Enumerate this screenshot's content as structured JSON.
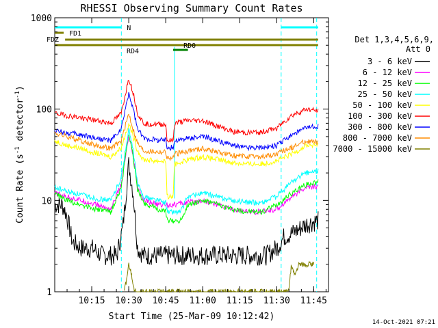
{
  "chart_data": {
    "type": "line",
    "title": "RHESSI Observing Summary Count Rates",
    "xlabel": "Start Time (25-Mar-09 10:12:42)",
    "ylabel_main": "Count Rate (s",
    "ylabel_sup1": "-1",
    "ylabel_mid": " detector",
    "ylabel_sup2": "-1",
    "ylabel_end": ")",
    "yscale": "log",
    "ylim": [
      1,
      1000
    ],
    "xlim_minutes": [
      10.0,
      11.85
    ],
    "x_ticks": [
      "10:15",
      "10:30",
      "10:45",
      "11:00",
      "11:15",
      "11:30",
      "11:45"
    ],
    "x_tick_values": [
      10.25,
      10.5,
      10.75,
      11.0,
      11.25,
      11.5,
      11.75
    ],
    "y_ticks": [
      "1",
      "10",
      "100",
      "1000"
    ],
    "y_tick_values": [
      1,
      10,
      100,
      1000
    ],
    "legend_header": [
      "Det 1,3,4,5,6,9,",
      "Att 0"
    ],
    "legend_placement": "right",
    "timestamp": "14-Oct-2021 07:21",
    "series": [
      {
        "name": "3 - 6 keV",
        "color": "#000000",
        "x": [
          10.0,
          10.05,
          10.08,
          10.12,
          10.18,
          10.25,
          10.32,
          10.38,
          10.42,
          10.46,
          10.5,
          10.53,
          10.56,
          10.6,
          10.65,
          10.75,
          10.85,
          11.0,
          11.15,
          11.3,
          11.43,
          11.5,
          11.55,
          11.62,
          11.7,
          11.78
        ],
        "y": [
          9,
          9,
          7,
          3.5,
          3,
          3,
          2.5,
          2.5,
          2.5,
          5,
          25,
          12,
          3,
          2.5,
          2.5,
          2.5,
          2.5,
          2.5,
          2.5,
          2.5,
          2.5,
          3,
          4,
          4.5,
          5.5,
          6
        ]
      },
      {
        "name": "6 - 12 keV",
        "color": "#ff00ff",
        "x": [
          10.0,
          10.08,
          10.18,
          10.28,
          10.38,
          10.45,
          10.5,
          10.53,
          10.56,
          10.6,
          10.7,
          10.8,
          10.9,
          11.0,
          11.1,
          11.2,
          11.3,
          11.4,
          11.5,
          11.6,
          11.7,
          11.78
        ],
        "y": [
          12,
          11,
          10,
          9,
          8,
          15,
          50,
          30,
          14,
          10,
          9,
          9,
          9.5,
          10,
          9,
          8,
          7.5,
          7.5,
          8,
          11,
          14,
          14
        ]
      },
      {
        "name": "12 - 25 keV",
        "color": "#00ff00",
        "x": [
          10.0,
          10.08,
          10.18,
          10.28,
          10.38,
          10.45,
          10.5,
          10.53,
          10.56,
          10.6,
          10.7,
          10.75,
          10.76,
          10.85,
          10.9,
          11.0,
          11.1,
          11.2,
          11.3,
          11.4,
          11.5,
          11.6,
          11.7,
          11.78
        ],
        "y": [
          12,
          10,
          9,
          8,
          7.5,
          14,
          55,
          30,
          13,
          9.5,
          8,
          7.5,
          6,
          6,
          9,
          10,
          9,
          8,
          7.5,
          7.5,
          9,
          12,
          15,
          16
        ]
      },
      {
        "name": "25 - 50 keV",
        "color": "#00ffff",
        "x": [
          10.0,
          10.08,
          10.18,
          10.28,
          10.38,
          10.45,
          10.5,
          10.53,
          10.56,
          10.6,
          10.7,
          10.75,
          10.76,
          10.85,
          10.9,
          11.0,
          11.1,
          11.2,
          11.3,
          11.4,
          11.5,
          11.6,
          11.7,
          11.78
        ],
        "y": [
          14,
          12.5,
          11.5,
          10.5,
          10,
          18,
          60,
          35,
          15,
          11,
          10,
          9.5,
          7.5,
          7.5,
          11,
          12,
          11,
          10,
          9.5,
          9.5,
          11,
          16,
          20,
          21
        ]
      },
      {
        "name": "50 - 100 keV",
        "color": "#ffff00",
        "x": [
          10.0,
          10.08,
          10.18,
          10.28,
          10.38,
          10.45,
          10.5,
          10.53,
          10.56,
          10.6,
          10.7,
          10.75,
          10.76,
          10.8,
          10.81,
          10.9,
          11.0,
          11.1,
          11.2,
          11.3,
          11.4,
          11.5,
          11.6,
          11.7,
          11.78
        ],
        "y": [
          45,
          40,
          37,
          33,
          30,
          38,
          70,
          50,
          35,
          28,
          27,
          27,
          11,
          11,
          25,
          28,
          30,
          28,
          26,
          25,
          25,
          27,
          32,
          40,
          40
        ]
      },
      {
        "name": "100 - 300 keV",
        "color": "#ff0000",
        "x": [
          10.0,
          10.08,
          10.18,
          10.28,
          10.38,
          10.45,
          10.5,
          10.53,
          10.56,
          10.6,
          10.7,
          10.75,
          10.76,
          10.8,
          10.81,
          10.9,
          11.0,
          11.1,
          11.2,
          11.3,
          11.4,
          11.5,
          11.6,
          11.7,
          11.78
        ],
        "y": [
          90,
          85,
          80,
          75,
          70,
          90,
          220,
          150,
          90,
          70,
          68,
          68,
          45,
          45,
          70,
          75,
          75,
          65,
          57,
          55,
          56,
          62,
          85,
          100,
          95
        ]
      },
      {
        "name": "300 - 800 keV",
        "color": "#0000ff",
        "x": [
          10.0,
          10.08,
          10.18,
          10.28,
          10.38,
          10.45,
          10.5,
          10.53,
          10.56,
          10.6,
          10.7,
          10.75,
          10.76,
          10.8,
          10.81,
          10.9,
          11.0,
          11.1,
          11.2,
          11.3,
          11.4,
          11.5,
          11.6,
          11.7,
          11.78
        ],
        "y": [
          58,
          55,
          52,
          48,
          45,
          60,
          150,
          100,
          60,
          48,
          46,
          46,
          38,
          38,
          45,
          48,
          50,
          45,
          40,
          38,
          38,
          40,
          52,
          62,
          65
        ]
      },
      {
        "name": "800 - 7000 keV",
        "color": "#ff8c00",
        "x": [
          10.0,
          10.08,
          10.18,
          10.28,
          10.38,
          10.45,
          10.5,
          10.53,
          10.56,
          10.6,
          10.7,
          10.75,
          10.76,
          10.8,
          10.81,
          10.9,
          11.0,
          11.1,
          11.2,
          11.3,
          11.4,
          11.5,
          11.6,
          11.7,
          11.78
        ],
        "y": [
          55,
          50,
          45,
          40,
          37,
          45,
          90,
          60,
          42,
          35,
          34,
          34,
          29,
          29,
          32,
          35,
          37,
          34,
          31,
          30,
          30,
          32,
          38,
          45,
          43
        ]
      },
      {
        "name": "7000 - 15000 keV",
        "color": "#808000",
        "x": [
          10.47,
          10.49,
          10.5,
          10.52,
          10.54,
          11.58,
          11.6,
          11.62,
          11.65,
          11.7,
          11.75
        ],
        "y": [
          1,
          1.5,
          2,
          1.5,
          1,
          1,
          2,
          1.5,
          2,
          2,
          2
        ]
      }
    ],
    "state_bars": [
      {
        "label": "N",
        "color": "#00ffff",
        "segments": [
          [
            10.0,
            10.45
          ],
          [
            11.53,
            11.78
          ]
        ],
        "level": "top"
      },
      {
        "label": "FD1",
        "color": "#808000",
        "segments": [
          [
            10.0,
            10.06
          ]
        ],
        "level": "fd1"
      },
      {
        "label": "FDZ",
        "color": "#808000",
        "segments": [
          [
            10.07,
            11.78
          ]
        ],
        "level": "fdz"
      },
      {
        "label": "RD0",
        "color": "#808000",
        "segments": [
          [
            10.0,
            11.78
          ]
        ],
        "level": "rd0"
      },
      {
        "label": "RD4",
        "color": "#008000",
        "segments": [
          [
            10.8,
            10.9
          ]
        ],
        "level": "rd4"
      }
    ],
    "vertical_markers_cyan": [
      10.45,
      11.53,
      11.77
    ],
    "vertical_markers_cyan_solid": [
      10.81
    ]
  }
}
